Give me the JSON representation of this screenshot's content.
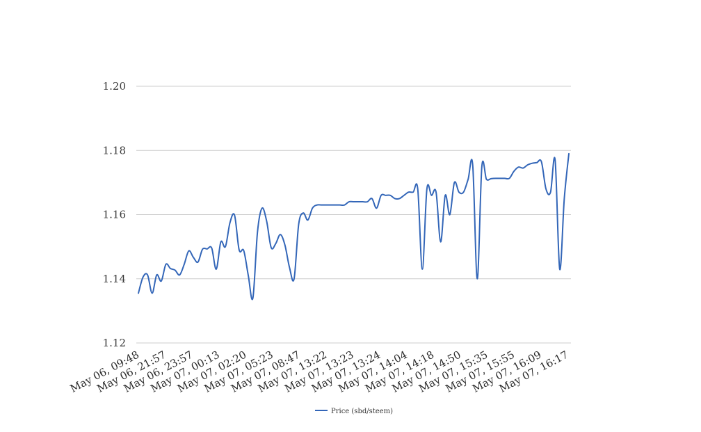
{
  "chart_data": {
    "type": "line",
    "title": "",
    "xlabel": "",
    "ylabel": "",
    "ylim": [
      1.12,
      1.2
    ],
    "yticks": [
      "1.12",
      "1.14",
      "1.16",
      "1.18",
      "1.20"
    ],
    "grid": true,
    "legend_position": "bottom",
    "xtick_labels": [
      "May 06, 09:48",
      "May 06, 21:57",
      "May 06, 23:57",
      "May 07, 00:13",
      "May 07, 02:20",
      "May 07, 05:23",
      "May 07, 08:47",
      "May 07, 13:22",
      "May 07, 13:23",
      "May 07, 13:24",
      "May 07, 14:04",
      "May 07, 14:18",
      "May 07, 14:50",
      "May 07, 15:35",
      "May 07, 15:55",
      "May 07, 16:09",
      "May 07, 16:17"
    ],
    "series": [
      {
        "name": "Price (sbd/steem)",
        "color": "#3366b8",
        "values": [
          1.1355,
          1.1405,
          1.1412,
          1.1355,
          1.1412,
          1.1393,
          1.1445,
          1.1432,
          1.1427,
          1.1412,
          1.1445,
          1.1487,
          1.1467,
          1.1452,
          1.1492,
          1.1493,
          1.1496,
          1.143,
          1.1515,
          1.15,
          1.1575,
          1.1598,
          1.149,
          1.1488,
          1.141,
          1.134,
          1.1545,
          1.162,
          1.158,
          1.1497,
          1.151,
          1.1538,
          1.1505,
          1.1435,
          1.14,
          1.157,
          1.1605,
          1.1583,
          1.162,
          1.163,
          1.163,
          1.163,
          1.163,
          1.163,
          1.163,
          1.163,
          1.164,
          1.164,
          1.164,
          1.164,
          1.164,
          1.165,
          1.162,
          1.166,
          1.166,
          1.166,
          1.165,
          1.165,
          1.166,
          1.167,
          1.167,
          1.168,
          1.143,
          1.168,
          1.166,
          1.167,
          1.1515,
          1.166,
          1.16,
          1.17,
          1.167,
          1.167,
          1.171,
          1.1755,
          1.14,
          1.175,
          1.171,
          1.1712,
          1.1713,
          1.1713,
          1.1713,
          1.1713,
          1.1735,
          1.1748,
          1.1745,
          1.1755,
          1.176,
          1.1762,
          1.1765,
          1.168,
          1.167,
          1.177,
          1.143,
          1.165,
          1.179
        ]
      }
    ]
  }
}
